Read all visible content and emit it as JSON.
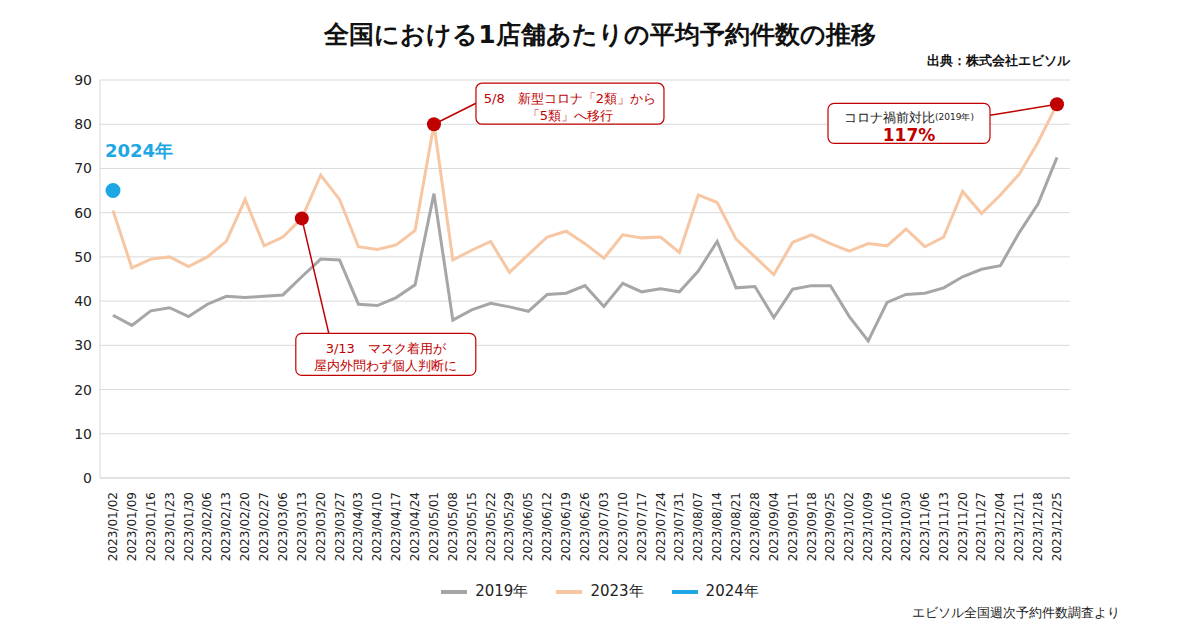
{
  "chart_data": {
    "type": "line",
    "title": "全国における1店舗あたりの平均予約件数の推移",
    "source": "出典：株式会社エビソル",
    "footnote": "エビソル全国週次予約件数調査より",
    "categories": [
      "2023/01/02",
      "2023/01/09",
      "2023/01/16",
      "2023/01/23",
      "2023/01/30",
      "2023/02/06",
      "2023/02/13",
      "2023/02/20",
      "2023/02/27",
      "2023/03/06",
      "2023/03/13",
      "2023/03/20",
      "2023/03/27",
      "2023/04/03",
      "2023/04/10",
      "2023/04/17",
      "2023/04/24",
      "2023/05/01",
      "2023/05/08",
      "2023/05/15",
      "2023/05/22",
      "2023/05/29",
      "2023/06/05",
      "2023/06/12",
      "2023/06/19",
      "2023/06/26",
      "2023/07/03",
      "2023/07/10",
      "2023/07/17",
      "2023/07/24",
      "2023/07/31",
      "2023/08/07",
      "2023/08/14",
      "2023/08/21",
      "2023/08/28",
      "2023/09/04",
      "2023/09/11",
      "2023/09/18",
      "2023/09/25",
      "2023/10/02",
      "2023/10/09",
      "2023/10/16",
      "2023/10/30",
      "2023/11/06",
      "2023/11/13",
      "2023/11/20",
      "2023/11/27",
      "2023/12/04",
      "2023/12/11",
      "2023/12/18",
      "2023/12/25"
    ],
    "series": [
      {
        "name": "2019年",
        "color": "#a6a6a6",
        "marker": "none",
        "values": [
          36.8,
          34.5,
          37.8,
          38.5,
          36.5,
          39.3,
          41.1,
          40.8,
          41.1,
          41.4,
          45.5,
          49.5,
          49.3,
          39.3,
          39,
          40.8,
          43.7,
          64.3,
          35.7,
          38,
          39.5,
          38.7,
          37.7,
          41.5,
          41.8,
          43.5,
          38.8,
          44,
          42.1,
          42.8,
          42.1,
          46.8,
          53.5,
          43,
          43.3,
          36.3,
          42.7,
          43.5,
          43.5,
          36.5,
          31,
          39.7,
          41.5,
          41.8,
          43,
          45.5,
          47.2,
          48,
          55.5,
          62,
          72.5
        ]
      },
      {
        "name": "2023年",
        "color": "#f7c6a3",
        "marker": "none",
        "values": [
          60.5,
          47.5,
          49.5,
          50,
          47.8,
          50,
          53.5,
          63,
          52.5,
          54.5,
          58.7,
          68.5,
          63,
          52.3,
          51.7,
          52.7,
          56,
          80,
          49.3,
          51.5,
          53.5,
          46.5,
          50.5,
          54.5,
          55.8,
          53,
          49.7,
          55,
          54.3,
          54.5,
          51,
          64,
          62.3,
          54,
          50,
          46,
          53.3,
          55,
          53,
          51.3,
          53,
          52.5,
          56.3,
          52.3,
          54.5,
          64.8,
          59.8,
          64,
          68.7,
          76,
          84.5
        ]
      },
      {
        "name": "2024年",
        "color": "#1ea7e4",
        "marker": "circle",
        "values": [
          65,
          null,
          null,
          null,
          null,
          null,
          null,
          null,
          null,
          null,
          null,
          null,
          null,
          null,
          null,
          null,
          null,
          null,
          null,
          null,
          null,
          null,
          null,
          null,
          null,
          null,
          null,
          null,
          null,
          null,
          null,
          null,
          null,
          null,
          null,
          null,
          null,
          null,
          null,
          null,
          null,
          null,
          null,
          null,
          null,
          null,
          null,
          null,
          null,
          null,
          null
        ]
      }
    ],
    "ylim": [
      0,
      90
    ],
    "yticks": [
      0,
      10,
      20,
      30,
      40,
      50,
      60,
      70,
      80,
      90
    ],
    "grid": true,
    "legend": "bottom",
    "labels": [
      {
        "x": "2023/01/02",
        "series": "2024年",
        "text": "2024年"
      }
    ],
    "annotations": [
      {
        "x": "2023/03/13",
        "series": "2023年",
        "color": "#c00000",
        "lines": [
          "3/13　マスク着用が",
          "屋内外問わず個人判断に"
        ]
      },
      {
        "x": "2023/05/01",
        "series": "2023年",
        "color": "#c00000",
        "lines": [
          "5/8　新型コロナ「2類」から",
          "「5類」へ移行"
        ]
      },
      {
        "x": "2023/12/25",
        "series": "2023年",
        "color": "#c00000",
        "lines": [
          "コロナ禍前対比",
          "117%"
        ],
        "note": "(2019年)"
      }
    ]
  }
}
